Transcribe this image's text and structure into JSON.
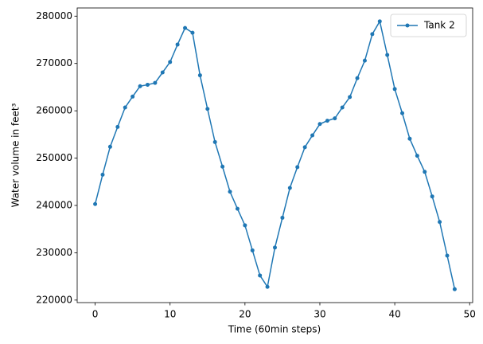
{
  "chart_data": {
    "type": "line",
    "x_label": "Time (60min steps)",
    "y_label": "Water volume in feet³",
    "x": [
      0,
      1,
      2,
      3,
      4,
      5,
      6,
      7,
      8,
      9,
      10,
      11,
      12,
      13,
      14,
      15,
      16,
      17,
      18,
      19,
      20,
      21,
      22,
      23,
      24,
      25,
      26,
      27,
      28,
      29,
      30,
      31,
      32,
      33,
      34,
      35,
      36,
      37,
      38,
      39,
      40,
      41,
      42,
      43,
      44,
      45,
      46,
      47,
      48
    ],
    "series": [
      {
        "name": "Tank 2",
        "color": "#1f77b4",
        "values": [
          240300,
          246500,
          252400,
          256600,
          260700,
          263000,
          265200,
          265500,
          265900,
          268100,
          270300,
          274000,
          277500,
          276500,
          267500,
          260400,
          253400,
          248200,
          242900,
          239300,
          235800,
          230500,
          225200,
          222800,
          231100,
          237400,
          243700,
          248100,
          252300,
          254800,
          257200,
          257900,
          258400,
          260700,
          262900,
          266900,
          270600,
          276200,
          278900,
          271800,
          264600,
          259500,
          254100,
          250500,
          247100,
          241900,
          236500,
          229400,
          222300
        ]
      }
    ],
    "xlim": [
      -2.4,
      50.4
    ],
    "ylim": [
      219470,
      281730
    ],
    "xticks": [
      0,
      10,
      20,
      30,
      40,
      50
    ],
    "yticks": [
      220000,
      230000,
      240000,
      250000,
      260000,
      270000,
      280000
    ],
    "grid": false,
    "legend": "upper right"
  }
}
